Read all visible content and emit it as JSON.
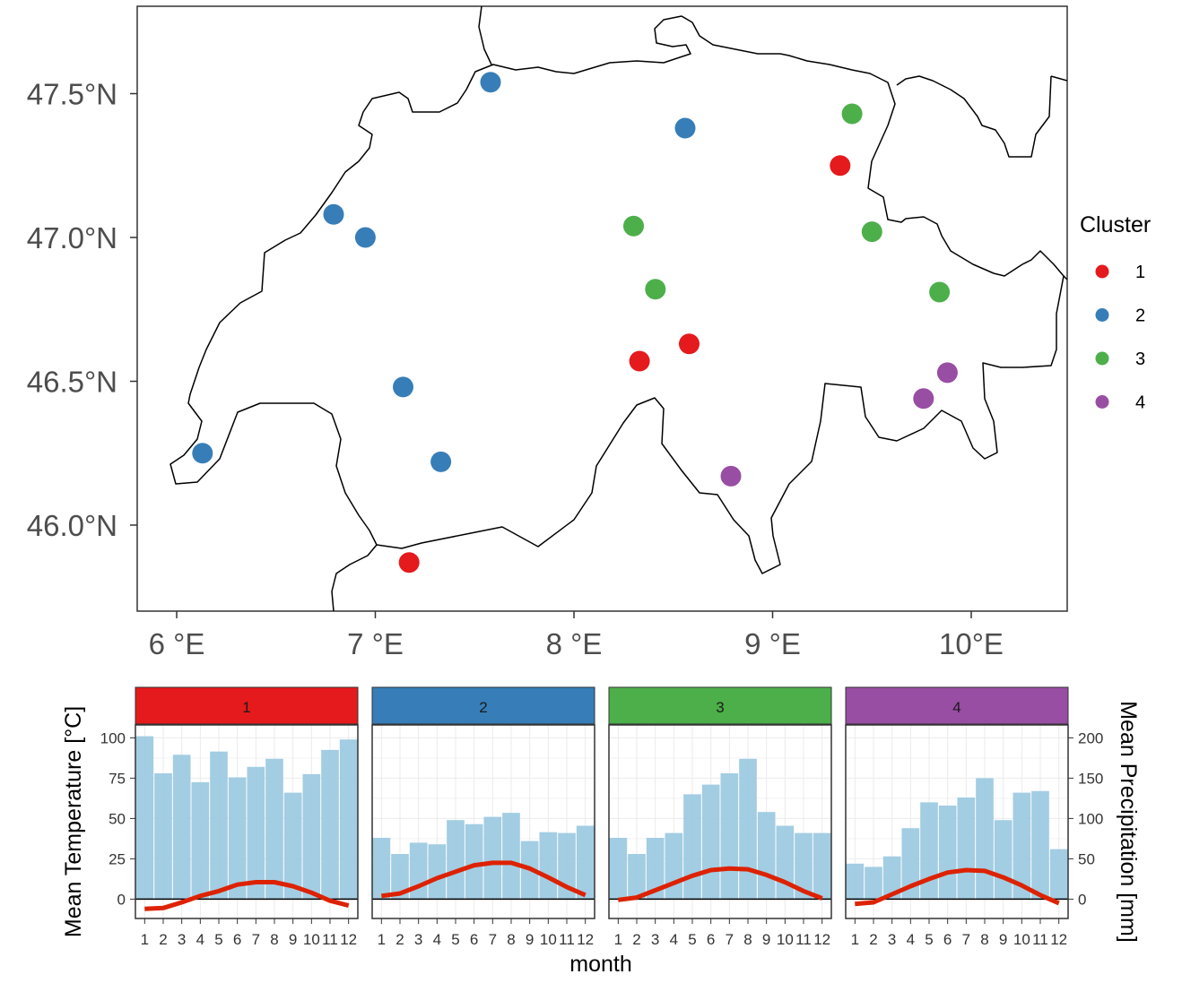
{
  "chart_data": [
    {
      "type": "scatter",
      "subtype": "map",
      "x_ticks": [
        "6 °E",
        "7 °E",
        "8 °E",
        "9 °E",
        "10°E"
      ],
      "x_tick_values": [
        6,
        7,
        8,
        9,
        10
      ],
      "y_ticks": [
        "46.0°N",
        "46.5°N",
        "47.0°N",
        "47.5°N"
      ],
      "y_tick_values": [
        46.0,
        46.5,
        47.0,
        47.5
      ],
      "xlim": [
        5.8,
        10.5
      ],
      "ylim": [
        45.7,
        47.8
      ],
      "legend": {
        "title": "Cluster",
        "placement": "right",
        "entries": [
          {
            "label": "1",
            "color": "#e41a1c"
          },
          {
            "label": "2",
            "color": "#377eb8"
          },
          {
            "label": "3",
            "color": "#4daf4a"
          },
          {
            "label": "4",
            "color": "#984ea3"
          }
        ]
      },
      "points": [
        {
          "lon": 6.13,
          "lat": 46.25,
          "cluster": "2"
        },
        {
          "lon": 6.79,
          "lat": 47.08,
          "cluster": "2"
        },
        {
          "lon": 6.95,
          "lat": 47.0,
          "cluster": "2"
        },
        {
          "lon": 7.14,
          "lat": 46.48,
          "cluster": "2"
        },
        {
          "lon": 7.33,
          "lat": 46.22,
          "cluster": "2"
        },
        {
          "lon": 7.58,
          "lat": 47.54,
          "cluster": "2"
        },
        {
          "lon": 8.56,
          "lat": 47.38,
          "cluster": "2"
        },
        {
          "lon": 7.17,
          "lat": 45.87,
          "cluster": "1"
        },
        {
          "lon": 8.33,
          "lat": 46.57,
          "cluster": "1"
        },
        {
          "lon": 8.58,
          "lat": 46.63,
          "cluster": "1"
        },
        {
          "lon": 9.34,
          "lat": 47.25,
          "cluster": "1"
        },
        {
          "lon": 8.3,
          "lat": 47.04,
          "cluster": "3"
        },
        {
          "lon": 8.41,
          "lat": 46.82,
          "cluster": "3"
        },
        {
          "lon": 9.4,
          "lat": 47.43,
          "cluster": "3"
        },
        {
          "lon": 9.5,
          "lat": 47.02,
          "cluster": "3"
        },
        {
          "lon": 9.84,
          "lat": 46.81,
          "cluster": "3"
        },
        {
          "lon": 8.79,
          "lat": 46.17,
          "cluster": "4"
        },
        {
          "lon": 9.76,
          "lat": 46.44,
          "cluster": "4"
        },
        {
          "lon": 9.88,
          "lat": 46.53,
          "cluster": "4"
        }
      ]
    },
    {
      "type": "bar",
      "subtype": "climate-diagram-facets",
      "xlabel": "month",
      "ylabel_left": "Mean Temperature [°C]",
      "ylabel_right": "Mean Precipitation [mm]",
      "categories": [
        "1",
        "2",
        "3",
        "4",
        "5",
        "6",
        "7",
        "8",
        "9",
        "10",
        "11",
        "12"
      ],
      "left_ticks": [
        "0",
        "25",
        "50",
        "75",
        "100"
      ],
      "left_tick_values": [
        0,
        25,
        50,
        75,
        100
      ],
      "right_ticks": [
        "0",
        "50",
        "100",
        "150",
        "200"
      ],
      "right_tick_values": [
        0,
        50,
        100,
        150,
        200
      ],
      "ylim_temperature": [
        -12,
        108
      ],
      "bar_color": "#9ecae1",
      "line_color": "#dd2200",
      "facets": [
        {
          "label": "1",
          "strip_color": "#e41a1c",
          "precipitation": [
            202,
            156,
            179,
            145,
            183,
            151,
            164,
            174,
            132,
            155,
            185,
            198
          ],
          "temperature": [
            -6,
            -5.5,
            -2,
            2,
            5,
            9,
            10.5,
            10.5,
            8,
            4,
            -1,
            -4
          ]
        },
        {
          "label": "2",
          "strip_color": "#377eb8",
          "precipitation": [
            76,
            56,
            70,
            68,
            98,
            93,
            102,
            107,
            72,
            83,
            82,
            91
          ],
          "temperature": [
            2,
            3.5,
            8,
            13,
            17,
            21,
            22.5,
            22.5,
            19,
            13.5,
            7.5,
            2.5
          ]
        },
        {
          "label": "3",
          "strip_color": "#4daf4a",
          "precipitation": [
            76,
            56,
            76,
            82,
            130,
            142,
            156,
            174,
            108,
            91,
            82,
            82
          ],
          "temperature": [
            -0.5,
            1,
            5.5,
            10,
            14.5,
            18,
            19,
            18.5,
            15,
            10.5,
            5,
            0.5
          ]
        },
        {
          "label": "4",
          "strip_color": "#984ea3",
          "precipitation": [
            44,
            40,
            53,
            88,
            120,
            116,
            126,
            150,
            98,
            132,
            134,
            62
          ],
          "temperature": [
            -3,
            -2,
            3,
            8,
            12.5,
            16.5,
            18,
            17.5,
            13.5,
            8.5,
            2.5,
            -2.5
          ]
        }
      ]
    }
  ]
}
